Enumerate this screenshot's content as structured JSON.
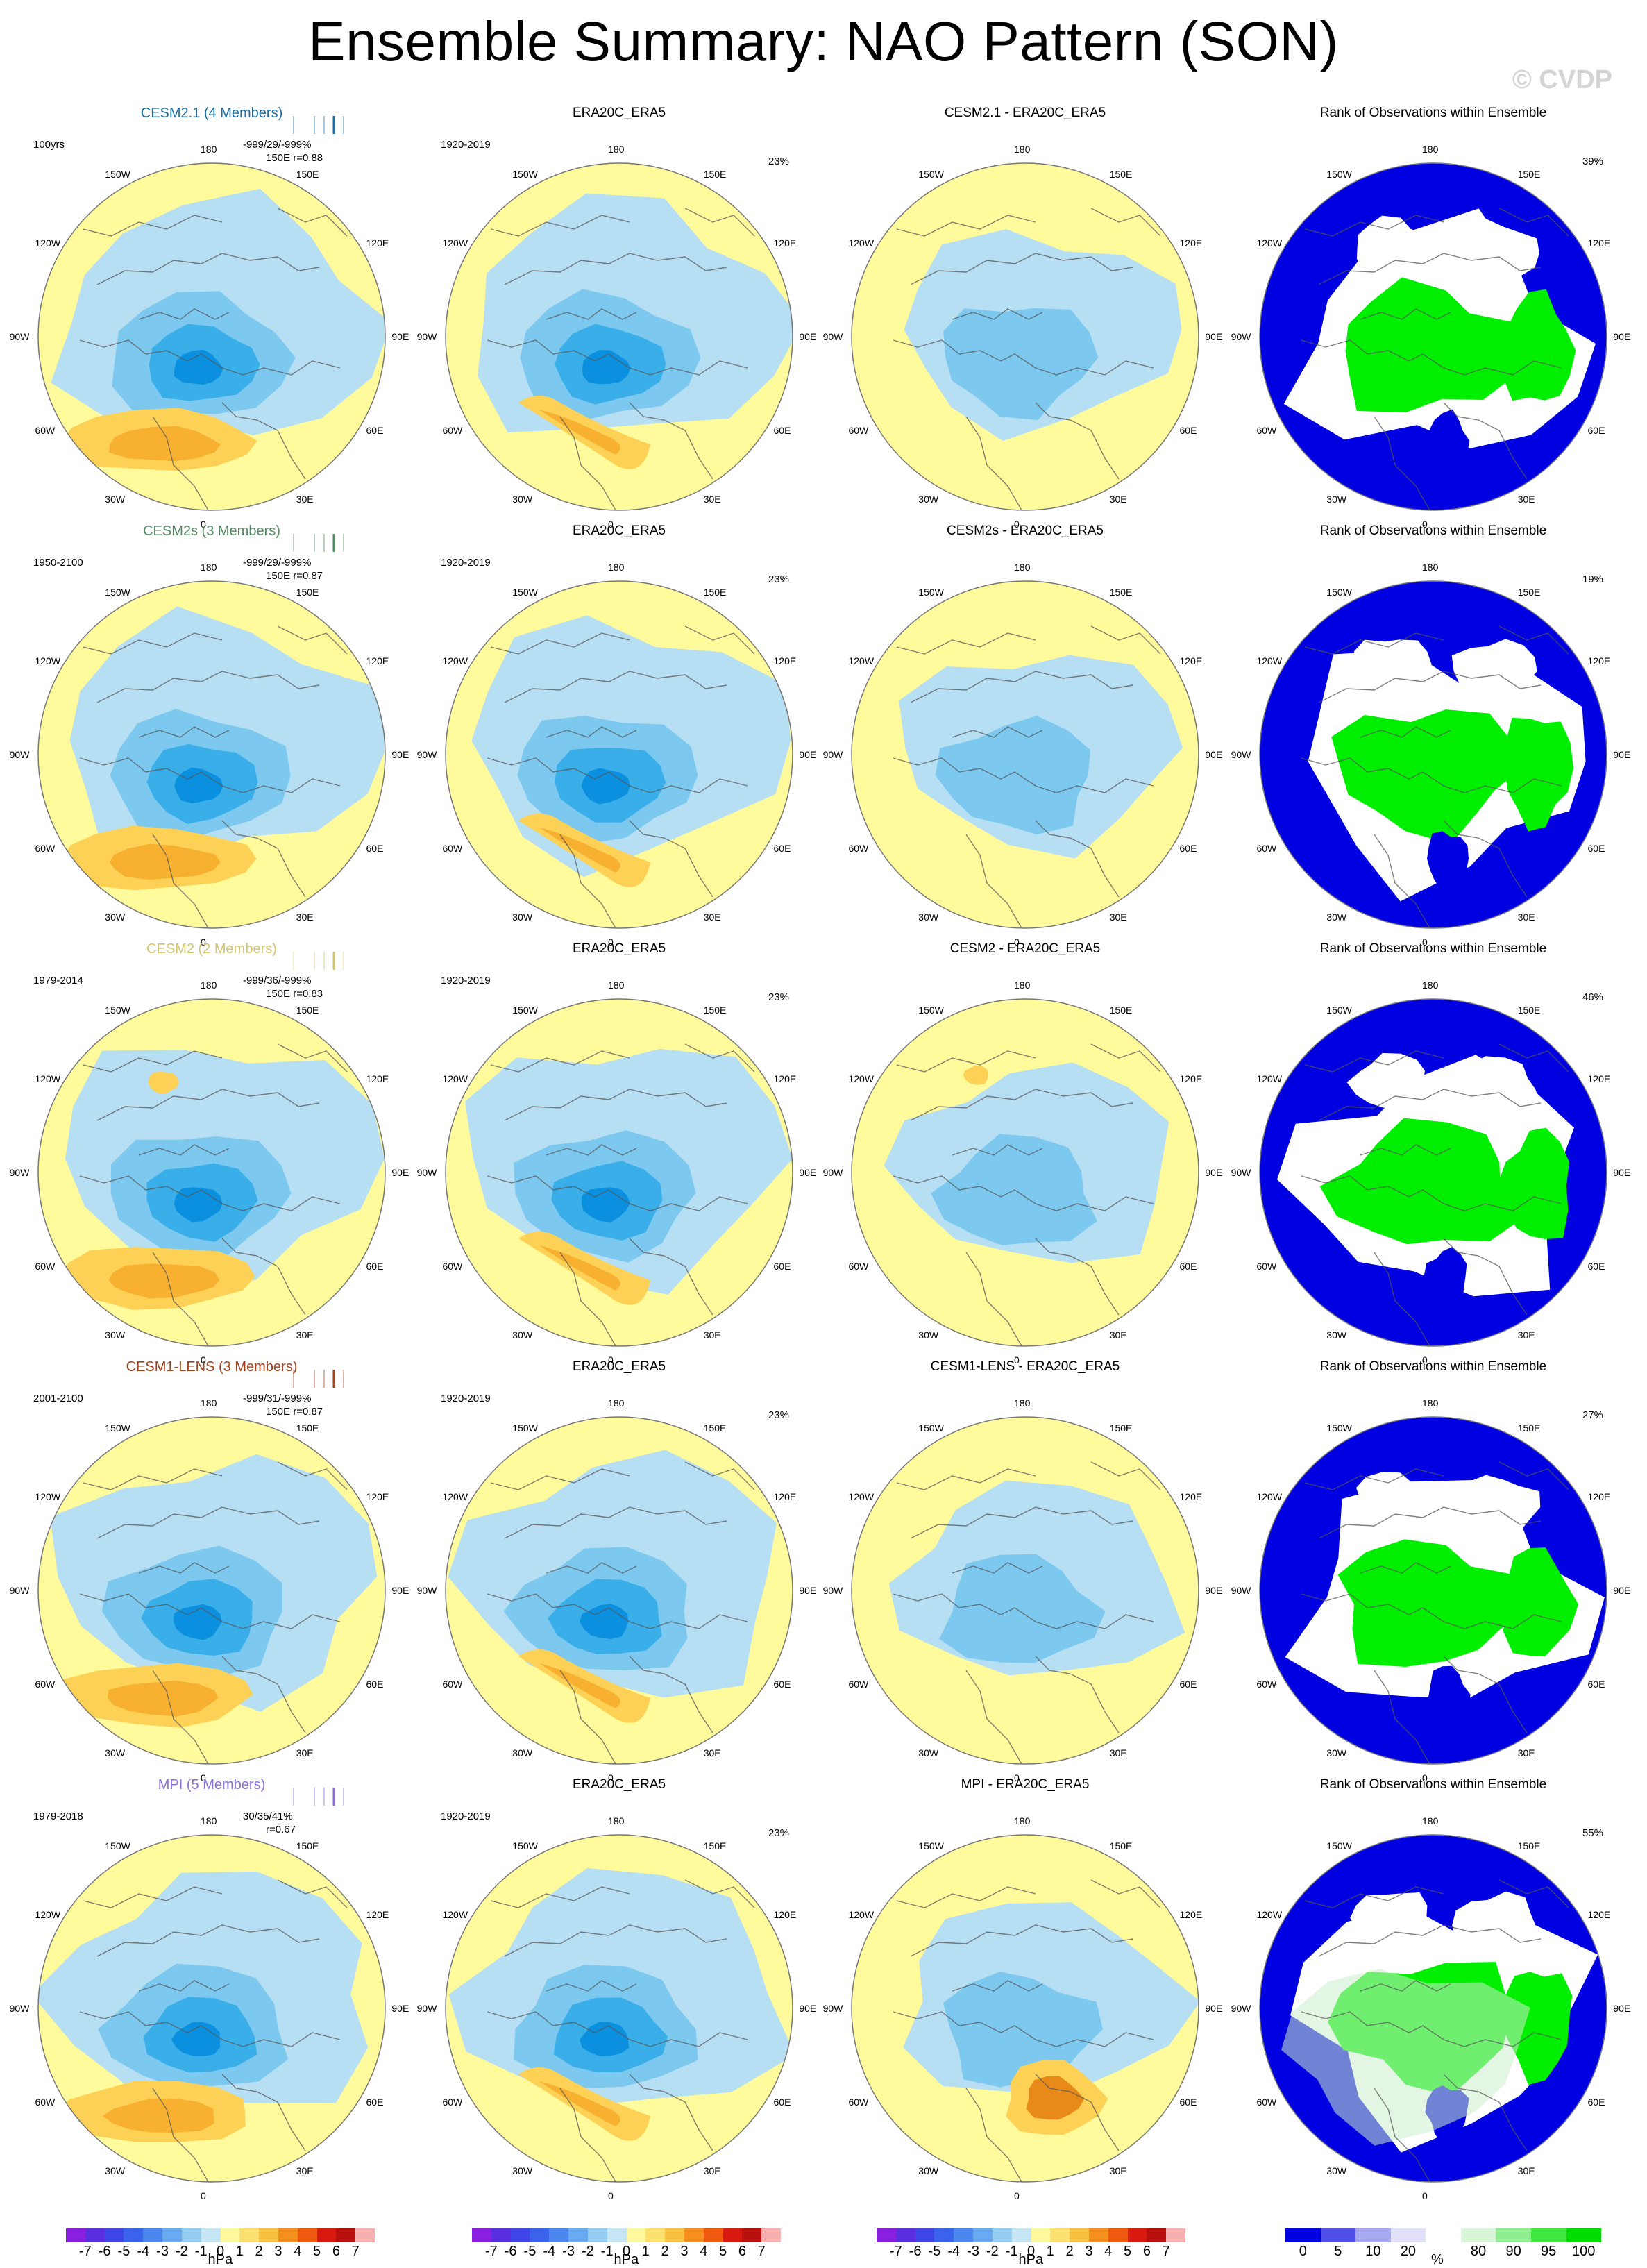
{
  "title": "Ensemble Summary: NAO Pattern (SON)",
  "watermark": "© CVDP",
  "longitude_labels": [
    "180",
    "150E",
    "120E",
    "90E",
    "60E",
    "30E",
    "0",
    "30W",
    "60W",
    "90W",
    "120W",
    "150W"
  ],
  "colors": {
    "yellow": "#fffb9c",
    "light_blue": "#b7dff3",
    "blue2": "#7cc8ef",
    "blue3": "#3aaee9",
    "blue4": "#0b90e0",
    "orange1": "#fcd155",
    "orange2": "#f8b030",
    "orange3": "#e88a1a",
    "rank_blue": "#0000e0",
    "rank_green": "#00ee00",
    "rank_white": "#ffffff",
    "rank_lightgreen": "#cceecc"
  },
  "rows": [
    {
      "model": {
        "title": "CESM2.1 (4 Members)",
        "title_color": "#1a6fa3",
        "period": "100yrs",
        "stat1": "-999/29/-999%",
        "stat2": "150E r=0.88",
        "tick_color": "#1a6fa3"
      },
      "obs": {
        "title": "ERA20C_ERA5",
        "period": "1920-2019",
        "pct": "23%"
      },
      "diff": {
        "title": "CESM2.1 - ERA20C_ERA5"
      },
      "rank": {
        "title": "Rank of Observations within Ensemble",
        "pct": "39%"
      }
    },
    {
      "model": {
        "title": "CESM2s (3 Members)",
        "title_color": "#4f8a5e",
        "period": "1950-2100",
        "stat1": "-999/29/-999%",
        "stat2": "150E r=0.87",
        "tick_color": "#4f8a5e"
      },
      "obs": {
        "title": "ERA20C_ERA5",
        "period": "1920-2019",
        "pct": "23%"
      },
      "diff": {
        "title": "CESM2s - ERA20C_ERA5"
      },
      "rank": {
        "title": "Rank of Observations within Ensemble",
        "pct": "19%"
      }
    },
    {
      "model": {
        "title": "CESM2 (2 Members)",
        "title_color": "#d2c36e",
        "period": "1979-2014",
        "stat1": "-999/36/-999%",
        "stat2": "150E r=0.83",
        "tick_color": "#d2c36e"
      },
      "obs": {
        "title": "ERA20C_ERA5",
        "period": "1920-2019",
        "pct": "23%"
      },
      "diff": {
        "title": "CESM2 - ERA20C_ERA5"
      },
      "rank": {
        "title": "Rank of Observations within Ensemble",
        "pct": "46%"
      }
    },
    {
      "model": {
        "title": "CESM1-LENS (3 Members)",
        "title_color": "#a0421a",
        "period": "2001-2100",
        "stat1": "-999/31/-999%",
        "stat2": "150E r=0.87",
        "tick_color": "#a0421a"
      },
      "obs": {
        "title": "ERA20C_ERA5",
        "period": "1920-2019",
        "pct": "23%"
      },
      "diff": {
        "title": "CESM1-LENS - ERA20C_ERA5"
      },
      "rank": {
        "title": "Rank of Observations within Ensemble",
        "pct": "27%"
      }
    },
    {
      "model": {
        "title": "MPI (5 Members)",
        "title_color": "#8a6fd6",
        "period": "1979-2018",
        "stat1": "30/35/41%",
        "stat2": "r=0.67",
        "tick_color": "#8a6fd6"
      },
      "obs": {
        "title": "ERA20C_ERA5",
        "period": "1920-2019",
        "pct": "23%"
      },
      "diff": {
        "title": "MPI - ERA20C_ERA5"
      },
      "rank": {
        "title": "Rank of Observations within Ensemble",
        "pct": "55%"
      }
    }
  ],
  "colorbar_hpa": {
    "ticks": [
      "-7",
      "-6",
      "-5",
      "-4",
      "-3",
      "-2",
      "-1",
      "0",
      "1",
      "2",
      "3",
      "4",
      "5",
      "6",
      "7"
    ],
    "unit": "hPa",
    "colors": [
      "#8a1fe0",
      "#5a2fe0",
      "#3f45e6",
      "#3a62ea",
      "#4d86ef",
      "#6aaaf0",
      "#95cdf2",
      "#c6e6f6",
      "#fff89c",
      "#fce070",
      "#f8c040",
      "#f59020",
      "#ef5a10",
      "#d81a10",
      "#b8100c",
      "#f7b0b0"
    ]
  },
  "colorbar_rank": {
    "ticks": [
      "0",
      "5",
      "10",
      "20",
      "80",
      "90",
      "95",
      "100"
    ],
    "unit": "%",
    "colors": [
      "#0000e0",
      "#5050e8",
      "#a8a8f0",
      "#e0e0f8",
      "#ffffff",
      "#d8f5d8",
      "#90ee90",
      "#40e840",
      "#00dd00"
    ]
  }
}
